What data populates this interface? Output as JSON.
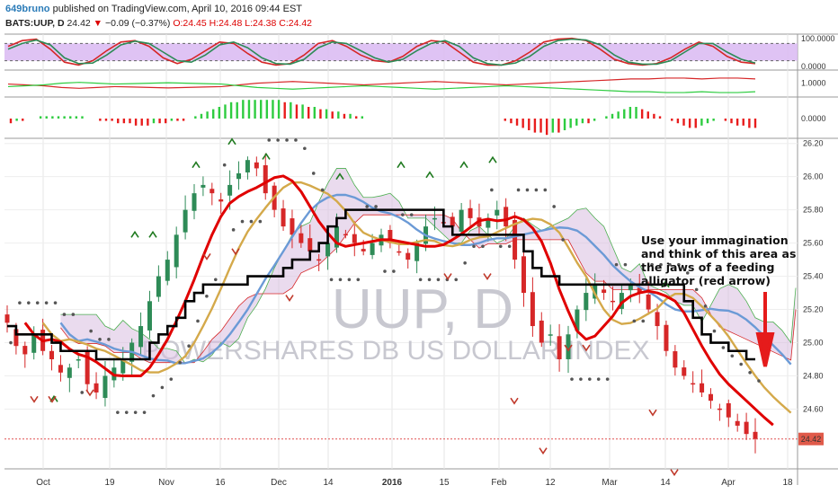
{
  "header": {
    "author": "649bruno",
    "published": "published on TradingView.com, April 10, 2016 09:44 EST",
    "symbol": "BATS:UUP, D",
    "last": "24.42",
    "change": "−0.09 (−0.37%)",
    "ohlc": "O:24.45 H:24.48 L:24.38 C:24.42"
  },
  "watermark": {
    "big": "UUP, D",
    "name": "POWERSHARES DB US DOLLAR INDEX"
  },
  "annotation": [
    "Use your immagination",
    "and think of this area as",
    "the jaws of a feeding",
    "alligator (red arrow)"
  ],
  "colors": {
    "up": "#2e8b57",
    "down": "#d62728",
    "accent": "#2a7bb8",
    "lips": "#e00000",
    "teeth": "#d4a94a",
    "jaw": "#6b9ad6",
    "line": "#000000",
    "cloud": "#d8bde0",
    "psar": "#555555",
    "arrow": "#e51b1b"
  },
  "chart_data": [
    {
      "type": "line",
      "panel": "oscillator-1",
      "y_ticks": [
        "100.0000",
        "0.0000"
      ],
      "ylim": [
        0,
        100
      ],
      "series": [
        {
          "color": "#d62728",
          "values": [
            70,
            90,
            95,
            60,
            15,
            5,
            20,
            55,
            85,
            90,
            70,
            30,
            10,
            25,
            55,
            85,
            80,
            45,
            15,
            5,
            10,
            40,
            80,
            90,
            70,
            40,
            20,
            15,
            35,
            70,
            90,
            85,
            50,
            15,
            5,
            5,
            20,
            50,
            85,
            95,
            98,
            90,
            60,
            25,
            10,
            5,
            10,
            30,
            60,
            85,
            70,
            35,
            15,
            10
          ]
        },
        {
          "color": "#2e8b57",
          "values": [
            60,
            80,
            92,
            75,
            30,
            10,
            12,
            40,
            75,
            88,
            80,
            50,
            20,
            15,
            40,
            75,
            85,
            65,
            30,
            10,
            8,
            25,
            65,
            85,
            80,
            55,
            30,
            15,
            25,
            55,
            80,
            90,
            70,
            30,
            10,
            5,
            12,
            35,
            70,
            90,
            95,
            92,
            75,
            40,
            15,
            8,
            8,
            20,
            50,
            80,
            80,
            50,
            25,
            12
          ]
        }
      ]
    },
    {
      "type": "line",
      "panel": "oscillator-2",
      "y_ticks": [
        "1.0000"
      ],
      "series": [
        {
          "color": "#d62728",
          "values": [
            0.9,
            0.8,
            0.7,
            0.5,
            0.4,
            0.5,
            0.6,
            0.55,
            0.5,
            0.45,
            0.5,
            0.55,
            0.6,
            0.8,
            1.0,
            1.1,
            1.2,
            1.1,
            1.0,
            0.9,
            0.8,
            0.9,
            1.0,
            1.1,
            1.2,
            1.1,
            1.0,
            0.9,
            0.8,
            0.9,
            1.0,
            1.1,
            1.2,
            1.3,
            1.4,
            1.5,
            1.5,
            1.6,
            1.6,
            1.5,
            1.6,
            1.6,
            1.5
          ]
        },
        {
          "color": "#2ecc40",
          "values": [
            0.6,
            0.7,
            0.8,
            1.0,
            1.1,
            1.0,
            0.9,
            0.95,
            1.0,
            1.05,
            1.0,
            0.95,
            0.9,
            0.7,
            0.5,
            0.4,
            0.3,
            0.4,
            0.5,
            0.6,
            0.7,
            0.6,
            0.5,
            0.4,
            0.3,
            0.4,
            0.5,
            0.6,
            0.7,
            0.6,
            0.5,
            0.4,
            0.3,
            0.2,
            0.1,
            0.0,
            0.0,
            -0.1,
            -0.1,
            0.0,
            -0.1,
            -0.1,
            0.0
          ]
        }
      ]
    },
    {
      "type": "bar",
      "panel": "histogram",
      "y_ticks": [
        "0.0000"
      ],
      "values": [
        -2,
        -1,
        -1,
        0,
        0,
        1,
        1,
        1,
        1,
        1,
        1,
        1,
        1,
        0,
        0,
        -1,
        -1,
        -1,
        -2,
        -2,
        -2,
        -3,
        -3,
        -3,
        -2,
        -2,
        -2,
        -1,
        -1,
        -1,
        0,
        1,
        2,
        3,
        4,
        5,
        6,
        7,
        7,
        8,
        8,
        8,
        8,
        8,
        8,
        8,
        7,
        7,
        6,
        6,
        5,
        5,
        4,
        4,
        3,
        3,
        2,
        2,
        1,
        1,
        0,
        0,
        0,
        0,
        0,
        0,
        0,
        0,
        0,
        0,
        0,
        0,
        0,
        0,
        0,
        0,
        0,
        0,
        0,
        0,
        0,
        0,
        0,
        -1,
        -2,
        -3,
        -4,
        -5,
        -6,
        -6,
        -7,
        -6,
        -6,
        -5,
        -4,
        -3,
        -2,
        -2,
        -1,
        0,
        1,
        2,
        3,
        4,
        5,
        5,
        4,
        3,
        2,
        1,
        0,
        -1,
        -2,
        -3,
        -4,
        -4,
        -3,
        -2,
        -1,
        0,
        -1,
        -2,
        -3,
        -3,
        -4,
        -4
      ]
    },
    {
      "type": "line",
      "panel": "price",
      "title": "BATS:UUP, D",
      "ylim": [
        24.24,
        26.22
      ],
      "y_ticks": [
        "26.20",
        "26.00",
        "25.80",
        "25.60",
        "25.40",
        "25.20",
        "25.00",
        "24.80",
        "24.60",
        "24.42"
      ],
      "last_price": "24.42",
      "x_ticks": [
        "Oct",
        "19",
        "Nov",
        "16",
        "Dec",
        "14",
        "2016",
        "15",
        "Feb",
        "12",
        "Mar",
        "14",
        "Apr",
        "18"
      ],
      "series": [
        {
          "name": "close",
          "color": "#000000",
          "values": [
            25.12,
            24.98,
            24.93,
            25.05,
            24.95,
            24.9,
            24.82,
            24.85,
            24.9,
            24.75,
            24.7,
            24.8,
            24.85,
            24.9,
            25.0,
            25.1,
            25.25,
            25.4,
            25.5,
            25.65,
            25.8,
            25.9,
            25.95,
            25.9,
            25.85,
            25.95,
            26.02,
            26.1,
            26.05,
            25.9,
            25.8,
            25.7,
            25.65,
            25.6,
            25.55,
            25.5,
            25.6,
            25.7,
            25.65,
            25.6,
            25.55,
            25.6,
            25.65,
            25.6,
            25.55,
            25.5,
            25.6,
            25.7,
            25.75,
            25.72,
            25.7,
            25.8,
            25.75,
            25.7,
            25.75,
            25.8,
            25.7,
            25.5,
            25.3,
            25.1,
            25.0,
            25.05,
            24.9,
            25.05,
            25.2,
            25.3,
            25.35,
            25.3,
            25.25,
            25.3,
            25.35,
            25.3,
            25.2,
            25.1,
            24.95,
            24.85,
            24.8,
            24.75,
            24.7,
            24.65,
            24.6,
            24.55,
            24.5,
            24.45,
            24.42
          ]
        }
      ]
    }
  ]
}
